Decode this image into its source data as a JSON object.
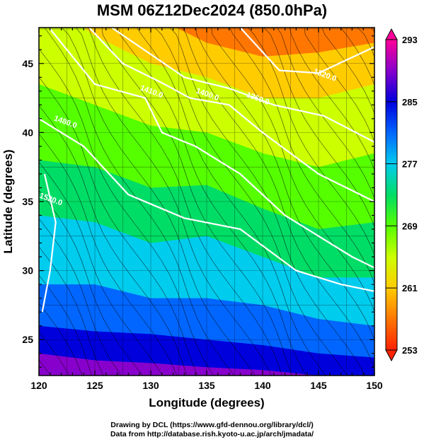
{
  "title": "MSM 06Z12Dec2024 (850.0hPa)",
  "credits": {
    "line1": "Drawing by DCL (https://www.gfd-dennou.org/library/dcl/)",
    "line2": "Data from http://database.rish.kyoto-u.ac.jp/arch/jmadata/"
  },
  "chart_data": {
    "type": "heatmap",
    "xlabel": "Longitude (degrees)",
    "ylabel": "Latitude  (degrees)",
    "xlim": [
      120,
      150
    ],
    "ylim": [
      22.4,
      47.6
    ],
    "x_ticks": [
      "120",
      "125",
      "130",
      "135",
      "140",
      "145",
      "150"
    ],
    "y_ticks": [
      "25",
      "30",
      "35",
      "40",
      "45"
    ],
    "grid": true,
    "colorbar": {
      "range": [
        253,
        293
      ],
      "tick_labels": [
        "293",
        "285",
        "277",
        "269",
        "261",
        "253"
      ],
      "colors": [
        "#ff0099",
        "#8800cc",
        "#0000dd",
        "#0066ff",
        "#00ccee",
        "#00dd66",
        "#55ff00",
        "#ccff00",
        "#ffcc00",
        "#ff7700",
        "#ff2200"
      ]
    },
    "contour_labels": [
      {
        "text": "1320.0",
        "lon": 145.5,
        "lat": 44.0
      },
      {
        "text": "1360.0",
        "lon": 139.5,
        "lat": 42.3
      },
      {
        "text": "1400.0",
        "lon": 135.0,
        "lat": 42.6
      },
      {
        "text": "1410.0",
        "lon": 130.0,
        "lat": 42.8
      },
      {
        "text": "1480.0",
        "lon": 122.3,
        "lat": 40.6
      },
      {
        "text": "1520.0",
        "lon": 121.0,
        "lat": 35.0
      }
    ],
    "contours": [
      [
        [
          126.5,
          47.6
        ],
        [
          133,
          44
        ],
        [
          137,
          43.2
        ],
        [
          141,
          42
        ],
        [
          145.5,
          41.2
        ],
        [
          150,
          39.3
        ]
      ],
      [
        [
          124.5,
          47.6
        ],
        [
          127.5,
          45
        ],
        [
          131,
          43.6
        ],
        [
          133.5,
          42.5
        ],
        [
          137,
          42
        ],
        [
          140,
          40
        ],
        [
          145,
          37
        ],
        [
          150,
          35
        ]
      ],
      [
        [
          121,
          47.5
        ],
        [
          125,
          43.5
        ],
        [
          129.5,
          42.5
        ],
        [
          131,
          40
        ],
        [
          134,
          39
        ],
        [
          138,
          37
        ],
        [
          142,
          34
        ],
        [
          148,
          31
        ],
        [
          150,
          30.2
        ]
      ],
      [
        [
          120,
          41
        ],
        [
          124,
          39
        ],
        [
          128,
          35.5
        ],
        [
          133,
          33.8
        ],
        [
          138,
          33
        ],
        [
          143,
          30
        ],
        [
          147,
          29
        ],
        [
          150,
          28.5
        ]
      ],
      [
        [
          120.5,
          37
        ],
        [
          121.5,
          33.5
        ],
        [
          121,
          30
        ],
        [
          120.3,
          27
        ]
      ],
      [
        [
          138,
          47.6
        ],
        [
          141.5,
          44.5
        ],
        [
          145,
          44.3
        ],
        [
          150,
          46.2
        ]
      ]
    ],
    "temperature_field": {
      "isotherms": [
        {
          "value": 257,
          "points": [
            [
              120,
              55
            ],
            [
              125,
              52
            ],
            [
              130,
              48.5
            ],
            [
              135,
              46.5
            ],
            [
              140,
              45.5
            ],
            [
              145,
              45.8
            ],
            [
              150,
              46.5
            ]
          ]
        },
        {
          "value": 261,
          "points": [
            [
              120,
              50
            ],
            [
              125,
              47
            ],
            [
              130,
              45
            ],
            [
              135,
              44
            ],
            [
              140,
              42.5
            ],
            [
              145,
              42.5
            ],
            [
              150,
              43.5
            ]
          ]
        },
        {
          "value": 265,
          "points": [
            [
              120,
              43.5
            ],
            [
              125,
              42
            ],
            [
              130,
              40.5
            ],
            [
              135,
              40
            ],
            [
              140,
              38.5
            ],
            [
              145,
              37.5
            ],
            [
              150,
              38.5
            ]
          ]
        },
        {
          "value": 269,
          "points": [
            [
              120,
              38
            ],
            [
              125,
              37.5
            ],
            [
              130,
              36
            ],
            [
              135,
              36.2
            ],
            [
              140,
              34.5
            ],
            [
              145,
              33
            ],
            [
              150,
              33.5
            ]
          ]
        },
        {
          "value": 273,
          "points": [
            [
              120,
              34
            ],
            [
              125,
              33.5
            ],
            [
              130,
              32
            ],
            [
              135,
              32.5
            ],
            [
              140,
              31
            ],
            [
              145,
              29.5
            ],
            [
              150,
              29.5
            ]
          ]
        },
        {
          "value": 277,
          "points": [
            [
              120,
              29
            ],
            [
              125,
              29
            ],
            [
              130,
              28
            ],
            [
              135,
              28
            ],
            [
              140,
              27.5
            ],
            [
              145,
              26.5
            ],
            [
              150,
              26
            ]
          ]
        },
        {
          "value": 281,
          "points": [
            [
              120,
              26
            ],
            [
              125,
              25.6
            ],
            [
              130,
              25.4
            ],
            [
              135,
              25
            ],
            [
              140,
              24.6
            ],
            [
              145,
              24
            ],
            [
              150,
              23.7
            ]
          ]
        },
        {
          "value": 285,
          "points": [
            [
              120,
              24
            ],
            [
              125,
              23.5
            ],
            [
              130,
              23.3
            ],
            [
              135,
              23
            ],
            [
              140,
              22.8
            ],
            [
              145,
              22.4
            ],
            [
              150,
              22.2
            ]
          ]
        }
      ]
    },
    "wind_direction": "northwesterly"
  }
}
